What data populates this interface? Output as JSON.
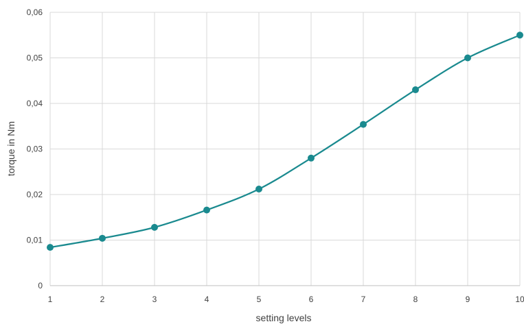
{
  "chart_data": {
    "type": "line",
    "title": "",
    "xlabel": "setting levels",
    "ylabel": "torque in Nm",
    "x": [
      1,
      2,
      3,
      4,
      5,
      6,
      7,
      8,
      9,
      10
    ],
    "x_tick_labels": [
      "1",
      "2",
      "3",
      "4",
      "5",
      "6",
      "7",
      "8",
      "9",
      "10"
    ],
    "y_tick_labels": [
      "0",
      "0,01",
      "0,02",
      "0,03",
      "0,04",
      "0,05",
      "0,06"
    ],
    "series": [
      {
        "values": [
          0.0084,
          0.0104,
          0.0128,
          0.0166,
          0.0212,
          0.028,
          0.0354,
          0.043,
          0.05,
          0.055
        ],
        "color": "#1a8a8f"
      }
    ],
    "xlim": [
      1,
      10
    ],
    "ylim": [
      0,
      0.06
    ],
    "y_ticks": [
      0,
      0.01,
      0.02,
      0.03,
      0.04,
      0.05,
      0.06
    ],
    "grid": true,
    "smooth": true,
    "marker": "circle"
  }
}
